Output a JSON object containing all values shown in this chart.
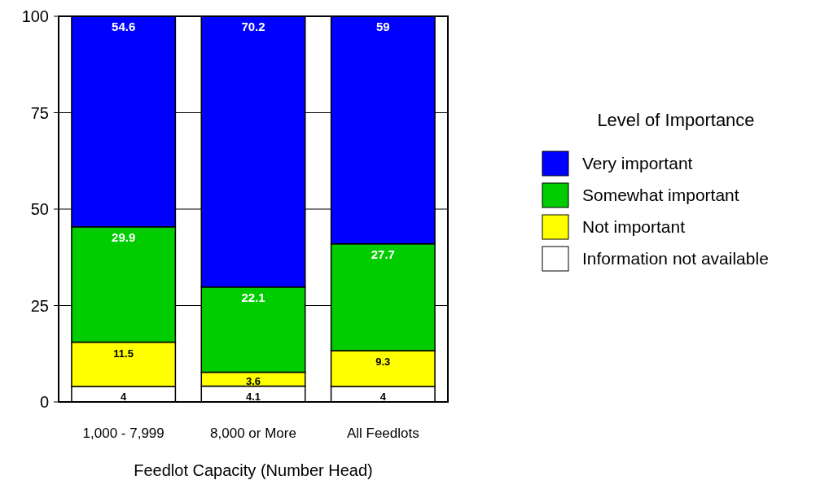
{
  "chart_data": {
    "type": "bar",
    "stacked": true,
    "xlabel": "Feedlot Capacity (Number Head)",
    "legend_title": "Level of Importance",
    "legend": "right",
    "grid": "y",
    "data_labels": true,
    "categories": [
      "1,000 - 7,999",
      "8,000 or More",
      "All Feedlots"
    ],
    "ylim": [
      0,
      100
    ],
    "yticks": [
      0,
      25,
      50,
      75,
      100
    ],
    "series": [
      {
        "name": "Information not available",
        "color": "#ffffff",
        "values": [
          4,
          4.1,
          4
        ]
      },
      {
        "name": "Not important",
        "color": "#ffff00",
        "values": [
          11.5,
          3.6,
          9.3
        ]
      },
      {
        "name": "Somewhat important",
        "color": "#00cc00",
        "values": [
          29.9,
          22.1,
          27.7
        ]
      },
      {
        "name": "Very important",
        "color": "#0000ff",
        "values": [
          54.6,
          70.2,
          59
        ]
      }
    ]
  }
}
